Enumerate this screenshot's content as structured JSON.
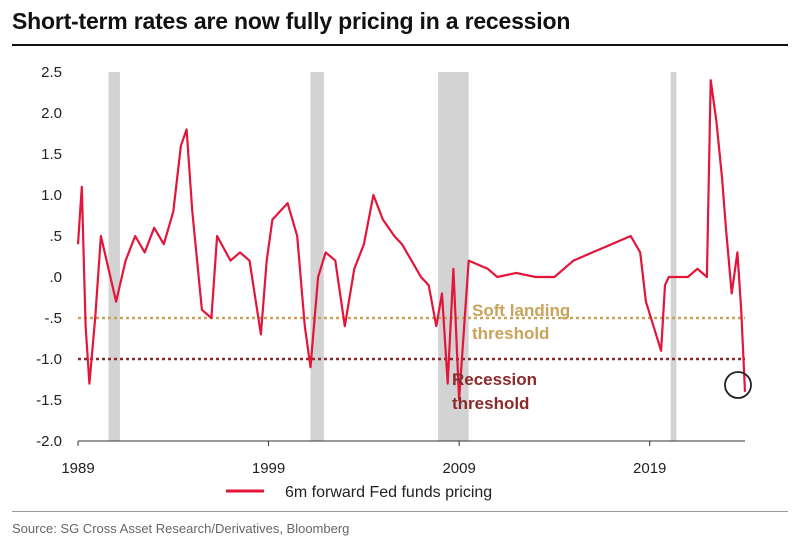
{
  "header": {
    "title": "Short-term rates are now fully pricing in a recession"
  },
  "footer": {
    "source": "Source: SG Cross Asset Research/Derivatives, Bloomberg"
  },
  "colors": {
    "series": "#e3153a",
    "soft": "#c8a45a",
    "recession": "#8b2a2a",
    "shade": "#d3d3d3"
  },
  "chart_data": {
    "type": "line",
    "title": "Short-term rates are now fully pricing in a recession",
    "xlabel": "",
    "ylabel": "",
    "xlim": [
      1989,
      2024
    ],
    "ylim": [
      -2.0,
      2.5
    ],
    "y_ticks": [
      2.5,
      2.0,
      1.5,
      1.0,
      0.5,
      0.0,
      -0.5,
      -1.0,
      -1.5,
      -2.0
    ],
    "y_tick_labels": [
      "2.5",
      "2.0",
      "1.5",
      "1.0",
      ".5",
      ".0",
      "-.5",
      "-1.0",
      "-1.5",
      "-2.0"
    ],
    "x_ticks": [
      1989,
      1999,
      2009,
      2019
    ],
    "x_tick_labels": [
      "1989",
      "1999",
      "2009",
      "2019"
    ],
    "recession_bands": [
      [
        1990.6,
        1991.2
      ],
      [
        2001.2,
        2001.9
      ],
      [
        2007.9,
        2009.5
      ],
      [
        2020.1,
        2020.4
      ]
    ],
    "thresholds": [
      {
        "name": "Soft landing threshold",
        "label_line1": "Soft landing",
        "label_line2": "threshold",
        "value": -0.5
      },
      {
        "name": "Recession threshold",
        "label_line1": "Recession",
        "label_line2": "threshold",
        "value": -1.0
      }
    ],
    "legend": {
      "label": "6m forward Fed funds pricing",
      "position": "bottom-center"
    },
    "series": [
      {
        "name": "6m forward Fed funds pricing",
        "x": [
          1989.0,
          1989.2,
          1989.4,
          1989.6,
          1989.9,
          1990.2,
          1990.6,
          1991.0,
          1991.5,
          1992.0,
          1992.5,
          1993.0,
          1993.5,
          1994.0,
          1994.4,
          1994.7,
          1995.0,
          1995.5,
          1996.0,
          1996.3,
          1997.0,
          1997.5,
          1998.0,
          1998.6,
          1998.9,
          1999.2,
          1999.6,
          2000.0,
          2000.5,
          2000.9,
          2001.2,
          2001.6,
          2002.0,
          2002.5,
          2003.0,
          2003.5,
          2004.0,
          2004.5,
          2005.0,
          2005.6,
          2006.0,
          2006.5,
          2007.0,
          2007.4,
          2007.8,
          2008.1,
          2008.4,
          2008.7,
          2009.0,
          2009.5,
          2010.0,
          2010.5,
          2011.0,
          2012.0,
          2013.0,
          2014.0,
          2015.0,
          2016.0,
          2017.0,
          2017.5,
          2018.0,
          2018.5,
          2018.8,
          2019.2,
          2019.6,
          2019.8,
          2020.0,
          2020.5,
          2021.0,
          2021.5,
          2022.0,
          2022.2,
          2022.5,
          2022.8,
          2023.0,
          2023.3,
          2023.6,
          2023.8,
          2024.0
        ],
        "values": [
          0.4,
          1.1,
          -0.6,
          -1.3,
          -0.5,
          0.5,
          0.1,
          -0.3,
          0.2,
          0.5,
          0.3,
          0.6,
          0.4,
          0.8,
          1.6,
          1.8,
          0.8,
          -0.4,
          -0.5,
          0.5,
          0.2,
          0.3,
          0.2,
          -0.7,
          0.2,
          0.7,
          0.8,
          0.9,
          0.5,
          -0.6,
          -1.1,
          0.0,
          0.3,
          0.2,
          -0.6,
          0.1,
          0.4,
          1.0,
          0.7,
          0.5,
          0.4,
          0.2,
          0.0,
          -0.1,
          -0.6,
          -0.2,
          -1.3,
          0.1,
          -1.5,
          0.2,
          0.15,
          0.1,
          0.0,
          0.05,
          0.0,
          0.0,
          0.2,
          0.3,
          0.4,
          0.45,
          0.5,
          0.3,
          -0.3,
          -0.6,
          -0.9,
          -0.1,
          0.0,
          0.0,
          0.0,
          0.1,
          0.0,
          2.4,
          1.9,
          1.2,
          0.6,
          -0.2,
          0.3,
          -0.4,
          -1.4
        ]
      }
    ]
  }
}
